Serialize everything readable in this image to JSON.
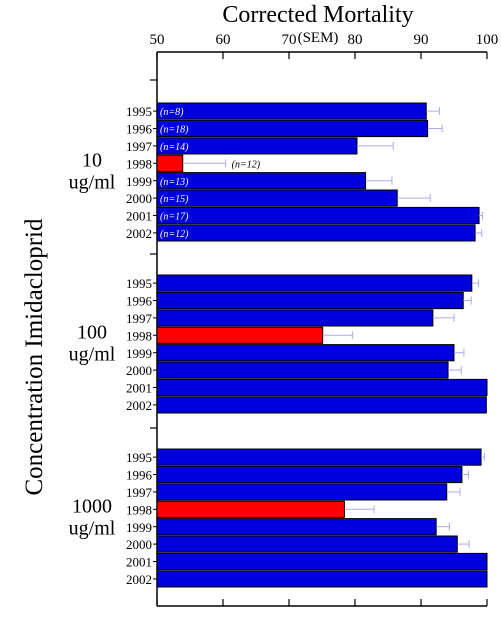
{
  "chart_data": {
    "type": "bar",
    "orientation": "horizontal",
    "title": "Corrected Mortality",
    "subtitle": "(SEM)",
    "ylabel": "Concentration Imidacloprid",
    "xlim": [
      50,
      100
    ],
    "x_ticks": [
      50,
      60,
      70,
      80,
      90,
      100
    ],
    "grid": false,
    "legend": "none",
    "colors": {
      "normal": "#0000dd",
      "highlight": "#ff0000",
      "error_bar": "#aaaaee"
    },
    "highlight_category": "1998",
    "groups": [
      {
        "label_line1": "10",
        "label_line2": "ug/ml",
        "bars": [
          {
            "year": "1995",
            "value": 90.8,
            "err": 2.0,
            "n": "(n=8)"
          },
          {
            "year": "1996",
            "value": 91.0,
            "err": 2.2,
            "n": "(n=18)"
          },
          {
            "year": "1997",
            "value": 80.3,
            "err": 5.5,
            "n": "(n=14)"
          },
          {
            "year": "1998",
            "value": 53.9,
            "err": 6.5,
            "n": "(n=12)"
          },
          {
            "year": "1999",
            "value": 81.6,
            "err": 4.0,
            "n": "(n=13)"
          },
          {
            "year": "2000",
            "value": 86.4,
            "err": 5.0,
            "n": "(n=15)"
          },
          {
            "year": "2001",
            "value": 98.8,
            "err": 0.5,
            "n": "(n=17)"
          },
          {
            "year": "2002",
            "value": 98.2,
            "err": 1.0,
            "n": "(n=12)"
          }
        ]
      },
      {
        "label_line1": "100",
        "label_line2": "ug/ml",
        "bars": [
          {
            "year": "1995",
            "value": 97.7,
            "err": 1.0
          },
          {
            "year": "1996",
            "value": 96.4,
            "err": 1.2
          },
          {
            "year": "1997",
            "value": 91.8,
            "err": 3.2
          },
          {
            "year": "1998",
            "value": 75.1,
            "err": 4.5
          },
          {
            "year": "1999",
            "value": 95.0,
            "err": 1.5
          },
          {
            "year": "2000",
            "value": 94.1,
            "err": 2.0
          },
          {
            "year": "2001",
            "value": 100.0,
            "err": 0.0
          },
          {
            "year": "2002",
            "value": 99.9,
            "err": 0.0
          }
        ]
      },
      {
        "label_line1": "1000",
        "label_line2": "ug/ml",
        "bars": [
          {
            "year": "1995",
            "value": 99.1,
            "err": 0.5
          },
          {
            "year": "1996",
            "value": 96.2,
            "err": 1.0
          },
          {
            "year": "1997",
            "value": 93.9,
            "err": 2.0
          },
          {
            "year": "1998",
            "value": 78.4,
            "err": 4.5
          },
          {
            "year": "1999",
            "value": 92.3,
            "err": 2.0
          },
          {
            "year": "2000",
            "value": 95.5,
            "err": 1.8
          },
          {
            "year": "2001",
            "value": 100.0,
            "err": 0.0
          },
          {
            "year": "2002",
            "value": 100.0,
            "err": 0.0
          }
        ]
      }
    ]
  }
}
